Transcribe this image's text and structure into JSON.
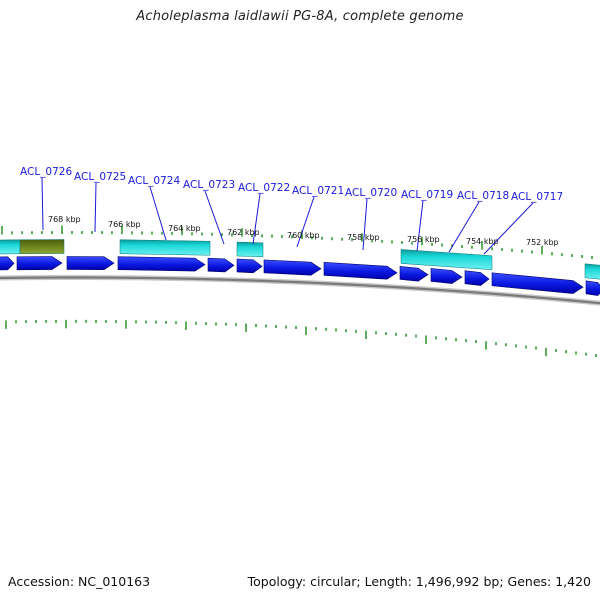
{
  "title": "Acholeplasma laidlawii PG-8A, complete genome",
  "footer": {
    "accession": "Accession: NC_010163",
    "summary": "Topology: circular; Length: 1,496,992 bp; Genes: 1,420"
  },
  "colors": {
    "gene_forward": "#0a18e0",
    "gene_dark": "#0000a8",
    "feature_cyan": "#1ad8d8",
    "feature_olive": "#708a1a",
    "tick": "#1a8a1a",
    "label": "#1a1adb",
    "backbone": "#7a7a7a"
  },
  "gene_labels": [
    {
      "text": "ACL_0726"
    },
    {
      "text": "ACL_0725"
    },
    {
      "text": "ACL_0724"
    },
    {
      "text": "ACL_0723"
    },
    {
      "text": "ACL_0722"
    },
    {
      "text": "ACL_0721"
    },
    {
      "text": "ACL_0720"
    },
    {
      "text": "ACL_0719"
    },
    {
      "text": "ACL_0718"
    },
    {
      "text": "ACL_0717"
    }
  ],
  "scale_labels": [
    {
      "text": "768 kbp"
    },
    {
      "text": "766 kbp"
    },
    {
      "text": "764 kbp"
    },
    {
      "text": "762 kbp"
    },
    {
      "text": "760 kbp"
    },
    {
      "text": "758 kbp"
    },
    {
      "text": "756 kbp"
    },
    {
      "text": "754 kbp"
    },
    {
      "text": "752 kbp"
    }
  ]
}
